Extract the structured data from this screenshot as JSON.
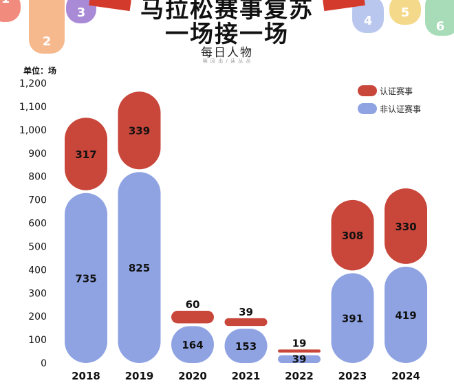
{
  "header": {
    "title_line1": "马拉松赛事复苏",
    "title_line2": "一场接一场",
    "brand": "每日人物",
    "brand_sub": "明 冈 出 / 读 丛 丛"
  },
  "decorations": [
    {
      "label": "1",
      "color": "#f08b7d"
    },
    {
      "label": "2",
      "color": "#f6b98e"
    },
    {
      "label": "3",
      "color": "#a98ad6"
    },
    {
      "label": "4",
      "color": "#b9c7ee"
    },
    {
      "label": "5",
      "color": "#f5d98a"
    },
    {
      "label": "6",
      "color": "#a8dcb9"
    }
  ],
  "colors": {
    "certified": "#c8463a",
    "non_certified": "#8fa3e3",
    "axis_text": "#111111",
    "ribbon": "#d43a2b"
  },
  "chart_data": {
    "type": "bar",
    "stacked": true,
    "unit_label": "单位：场",
    "categories": [
      "2018",
      "2019",
      "2020",
      "2021",
      "2022",
      "2023",
      "2024"
    ],
    "series": [
      {
        "name": "非认证赛事",
        "values": [
          735,
          825,
          164,
          153,
          39,
          391,
          419
        ]
      },
      {
        "name": "认证赛事",
        "values": [
          317,
          339,
          60,
          39,
          19,
          308,
          330
        ]
      }
    ],
    "ylim": [
      0,
      1200
    ],
    "yticks": [
      "0",
      "100",
      "200",
      "300",
      "400",
      "500",
      "600",
      "700",
      "800",
      "900",
      "1,000",
      "1,100",
      "1,200"
    ],
    "legend": [
      "认证赛事",
      "非认证赛事"
    ],
    "legend_position": "top-right",
    "grid": false
  }
}
